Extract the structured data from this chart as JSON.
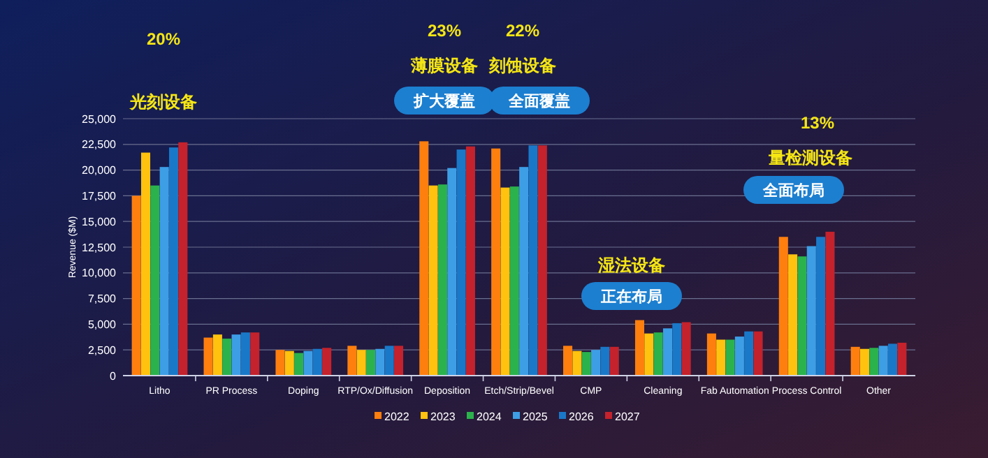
{
  "chart_data": {
    "type": "bar",
    "ylabel": "Revenue ($M)",
    "categories": [
      "Litho",
      "PR Process",
      "Doping",
      "RTP/Ox/Diffusion",
      "Deposition",
      "Etch/Strip/Bevel",
      "CMP",
      "Cleaning",
      "Fab Automation",
      "Process Control",
      "Other"
    ],
    "series": [
      {
        "name": "2022",
        "color": "#ff7f0e",
        "values": [
          17500,
          3700,
          2500,
          2900,
          22800,
          22100,
          2900,
          5400,
          4100,
          13500,
          2800
        ]
      },
      {
        "name": "2023",
        "color": "#ffc20e",
        "values": [
          21700,
          4000,
          2400,
          2500,
          18500,
          18300,
          2400,
          4100,
          3500,
          11800,
          2600
        ]
      },
      {
        "name": "2024",
        "color": "#2bb24c",
        "values": [
          18500,
          3600,
          2200,
          2500,
          18600,
          18400,
          2300,
          4200,
          3500,
          11600,
          2700
        ]
      },
      {
        "name": "2025",
        "color": "#3d9ee6",
        "values": [
          20300,
          4000,
          2400,
          2600,
          20200,
          20300,
          2500,
          4600,
          3800,
          12600,
          2900
        ]
      },
      {
        "name": "2026",
        "color": "#1a78c8",
        "values": [
          22200,
          4200,
          2600,
          2900,
          22000,
          22400,
          2800,
          5100,
          4300,
          13500,
          3100
        ]
      },
      {
        "name": "2027",
        "color": "#c4222c",
        "values": [
          22700,
          4200,
          2700,
          2900,
          22300,
          22400,
          2800,
          5200,
          4300,
          14000,
          3200
        ]
      }
    ],
    "ylim": [
      0,
      25000
    ],
    "yticks": [
      {
        "value": 0,
        "label": "0"
      },
      {
        "value": 2500,
        "label": "2,500"
      },
      {
        "value": 5000,
        "label": "5,000"
      },
      {
        "value": 7500,
        "label": "7,500"
      },
      {
        "value": 10000,
        "label": "10,000"
      },
      {
        "value": 12500,
        "label": "12,500"
      },
      {
        "value": 15000,
        "label": "15,000"
      },
      {
        "value": 17500,
        "label": "17,500"
      },
      {
        "value": 20000,
        "label": "20,000"
      },
      {
        "value": 22500,
        "label": "22,500"
      },
      {
        "value": 25000,
        "label": "25,000"
      }
    ],
    "grid": "y",
    "legend": "bottom",
    "annotations": [
      "20%",
      "光刻设备",
      "23%",
      "薄膜设备",
      "扩大覆盖",
      "22%",
      "刻蚀设备",
      "全面覆盖",
      "湿法设备",
      "正在布局",
      "13%",
      "量检测设备",
      "全面布局"
    ]
  }
}
